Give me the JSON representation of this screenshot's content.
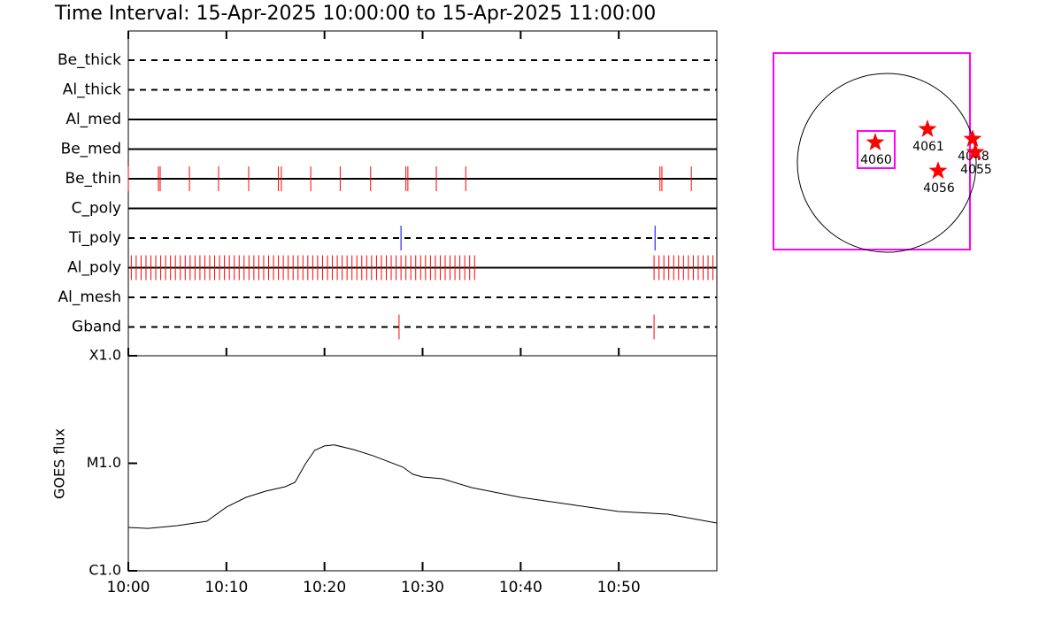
{
  "chart_data": [
    {
      "type": "timeline",
      "title": "Time Interval: 15-Apr-2025 10:00:00 to 15-Apr-2025 11:00:00",
      "xlim": [
        0,
        60
      ],
      "xticks": [
        0,
        10,
        20,
        30,
        40,
        50
      ],
      "rows": [
        {
          "label": "Be_thick",
          "line": "dashed",
          "events": []
        },
        {
          "label": "Al_thick",
          "line": "dashed",
          "events": []
        },
        {
          "label": "Al_med",
          "line": "solid",
          "events": []
        },
        {
          "label": "Be_med",
          "line": "solid",
          "events": []
        },
        {
          "label": "Be_thin",
          "line": "solid",
          "events": [
            {
              "color": "#ff0000",
              "times": [
                0,
                3.07,
                3.25,
                6.23,
                9.2,
                12.27,
                15.3,
                15.6,
                18.6,
                21.6,
                24.7,
                28.3,
                28.5,
                31.4,
                34.4,
                54.2,
                54.4,
                57.4
              ]
            }
          ]
        },
        {
          "label": "C_poly",
          "line": "solid",
          "events": []
        },
        {
          "label": "Ti_poly",
          "line": "dashed",
          "events": [
            {
              "color": "#0000ff",
              "times": [
                27.8,
                53.7
              ]
            }
          ]
        },
        {
          "label": "Al_poly",
          "line": "solid",
          "events": [
            {
              "color": "#ff0000",
              "times": [
                0.3,
                0.8,
                1.3,
                1.8,
                2.3,
                2.8,
                3.3,
                3.8,
                4.3,
                4.8,
                5.3,
                5.8,
                6.3,
                6.8,
                7.3,
                7.8,
                8.3,
                8.8,
                9.3,
                9.8,
                10.3,
                10.8,
                11.3,
                11.8,
                12.3,
                12.8,
                13.3,
                13.8,
                14.3,
                14.8,
                15.3,
                15.8,
                16.3,
                16.8,
                17.3,
                17.8,
                18.3,
                18.8,
                19.3,
                19.8,
                20.3,
                20.8,
                21.3,
                21.8,
                22.3,
                22.8,
                23.3,
                23.8,
                24.3,
                24.8,
                25.3,
                25.8,
                26.3,
                26.8,
                27.3,
                27.8,
                28.3,
                28.8,
                29.3,
                29.8,
                30.3,
                30.8,
                31.3,
                31.8,
                32.3,
                32.8,
                33.3,
                33.8,
                34.3,
                34.8,
                35.3,
                53.6,
                54.1,
                54.6,
                55.1,
                55.6,
                56.1,
                56.6,
                57.1,
                57.6,
                58.1,
                58.6,
                59.1,
                59.6
              ]
            }
          ]
        },
        {
          "label": "Al_mesh",
          "line": "dashed",
          "events": []
        },
        {
          "label": "Gband",
          "line": "dashed",
          "events": [
            {
              "color": "#ff0000",
              "times": [
                27.6,
                53.6
              ]
            }
          ]
        }
      ]
    },
    {
      "type": "line",
      "ylabel": "GOES flux",
      "log_scale": true,
      "color": "#000000",
      "xlim": [
        0,
        60
      ],
      "xticks": [
        {
          "value": 0,
          "label": "10:00"
        },
        {
          "value": 10,
          "label": "10:10"
        },
        {
          "value": 20,
          "label": "10:20"
        },
        {
          "value": 30,
          "label": "10:30"
        },
        {
          "value": 40,
          "label": "10:40"
        },
        {
          "value": 50,
          "label": "10:50"
        }
      ],
      "ylim": [
        1e-06,
        0.0001
      ],
      "yticks": [
        {
          "value": 1e-06,
          "label": "C1.0"
        },
        {
          "value": 1e-05,
          "label": "M1.0"
        },
        {
          "value": 0.0001,
          "label": "X1.0"
        }
      ],
      "x": [
        0,
        2,
        5,
        8,
        10,
        12,
        14,
        16,
        17,
        18,
        19,
        20,
        21,
        23,
        25,
        28,
        29,
        30,
        32,
        35,
        40,
        45,
        50,
        55,
        60
      ],
      "values": [
        2.53e-06,
        2.48e-06,
        2.63e-06,
        2.89e-06,
        3.91e-06,
        4.82e-06,
        5.5e-06,
        6.05e-06,
        6.65e-06,
        9.7e-06,
        1.32e-05,
        1.45e-05,
        1.48e-05,
        1.34e-05,
        1.17e-05,
        9.2e-06,
        7.9e-06,
        7.45e-06,
        7.18e-06,
        5.94e-06,
        4.82e-06,
        4.14e-06,
        3.56e-06,
        3.36e-06,
        2.78e-06
      ]
    },
    {
      "type": "map",
      "color": "#ff0000",
      "xlim": [
        -1216,
        893
      ],
      "ylim": [
        -931,
        1178
      ],
      "sun_radius": 960,
      "labels": [
        "4060",
        "4061",
        "4048",
        "4055",
        "4056"
      ],
      "x": [
        -124,
        437,
        921,
        950,
        551
      ],
      "values": [
        218,
        361,
        256,
        114,
        -86
      ]
    }
  ]
}
